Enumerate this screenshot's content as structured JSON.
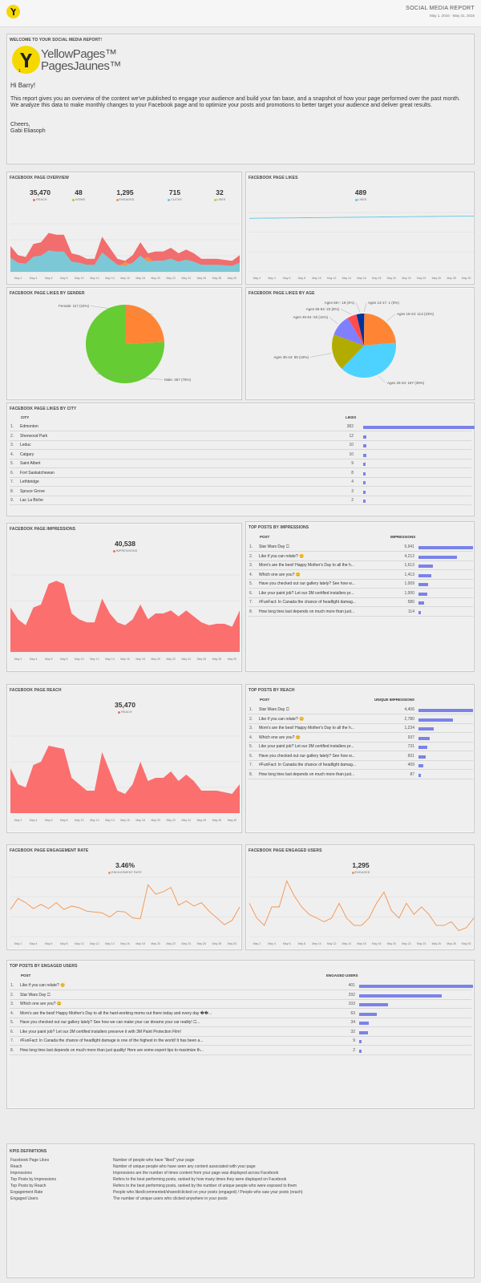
{
  "header": {
    "title": "SOCIAL MEDIA REPORT",
    "date_range": "May 1, 2016 - May 31, 2016"
  },
  "welcome": {
    "title": "WELCOME TO YOUR SOCIAL MEDIA REPORT!",
    "logo_line1": "YellowPages™",
    "logo_line2": "PagesJaunes™",
    "greeting": "Hi Barry!",
    "body": "This report gives you an overview of the content we've published to engage your audience and build your fan base, and a snapshot of how your page performed over the past month. We analyze this data to make monthly changes to your Facebook page and to optimize your posts and promotions to better target your audience and deliver great results.",
    "signoff": "Cheers,",
    "name": "Gabi Eliasoph"
  },
  "date_labels": [
    "May 2",
    "May 4",
    "May 6",
    "May 8",
    "May 10",
    "May 12",
    "May 14",
    "May 16",
    "May 18",
    "May 20",
    "May 22",
    "May 24",
    "May 26",
    "May 28",
    "May 30"
  ],
  "overview": {
    "title": "FACEBOOK PAGE OVERVIEW",
    "stats": [
      {
        "value": "35,470",
        "label": "REACH",
        "color": "#f26d6d"
      },
      {
        "value": "48",
        "label": "VIEWS",
        "color": "#9fcf3a"
      },
      {
        "value": "1,295",
        "label": "ENGAGED",
        "color": "#f5924b"
      },
      {
        "value": "715",
        "label": "CLICKS",
        "color": "#5ec8e6"
      },
      {
        "value": "32",
        "label": "LIKES",
        "color": "#b6d63a"
      }
    ]
  },
  "likes_panel": {
    "title": "FACEBOOK PAGE LIKES",
    "value": "489",
    "label": "LIKES"
  },
  "gender_panel": {
    "title": "FACEBOOK PAGE LIKES BY GENDER"
  },
  "age_panel": {
    "title": "FACEBOOK PAGE LIKES BY AGE"
  },
  "city_panel": {
    "title": "FACEBOOK PAGE LIKES BY CITY",
    "col_city": "CITY",
    "col_likes": "LIKES",
    "rows": [
      {
        "n": "1.",
        "city": "Edmonton",
        "likes": "382",
        "v": 382
      },
      {
        "n": "2.",
        "city": "Sherwood Park",
        "likes": "12",
        "v": 12
      },
      {
        "n": "3.",
        "city": "Leduc",
        "likes": "10",
        "v": 10
      },
      {
        "n": "4.",
        "city": "Calgary",
        "likes": "10",
        "v": 10
      },
      {
        "n": "5.",
        "city": "Saint Albert",
        "likes": "9",
        "v": 9
      },
      {
        "n": "6.",
        "city": "Fort Saskatchewan",
        "likes": "8",
        "v": 8
      },
      {
        "n": "7.",
        "city": "Lethbridge",
        "likes": "4",
        "v": 4
      },
      {
        "n": "8.",
        "city": "Spruce Grove",
        "likes": "3",
        "v": 3
      },
      {
        "n": "9.",
        "city": "Lac La Biche",
        "likes": "2",
        "v": 2
      }
    ]
  },
  "impressions_panel": {
    "title": "FACEBOOK PAGE IMPRESSIONS",
    "value": "40,538",
    "label": "IMPRESSIONS"
  },
  "top_impr": {
    "title": "TOP POSTS BY IMPRESSIONS",
    "col_post": "POST",
    "col_val": "IMPRESSIONS",
    "rows": [
      {
        "n": "1.",
        "post": "Star Wars Day 🞎",
        "val": "5,941",
        "v": 5941
      },
      {
        "n": "2.",
        "post": "Like if you can relate? 😊",
        "val": "4,212",
        "v": 4212
      },
      {
        "n": "3.",
        "post": "Mom's are the best! Happy Mother's Day to all the h...",
        "val": "1,613",
        "v": 1613
      },
      {
        "n": "4.",
        "post": "Which one are you? 😊",
        "val": "1,413",
        "v": 1413
      },
      {
        "n": "5.",
        "post": "Have you checked out our gallery lately? See how w...",
        "val": "1,009",
        "v": 1009
      },
      {
        "n": "6.",
        "post": "Like your paint job? Let our 3M certified installers pr...",
        "val": "1,000",
        "v": 1000
      },
      {
        "n": "7.",
        "post": "#FunFact: In Canada the chance of headlight damag...",
        "val": "580",
        "v": 580
      },
      {
        "n": "8.",
        "post": "How long tires last depends on much more than just...",
        "val": "114",
        "v": 114
      }
    ]
  },
  "reach_panel": {
    "title": "FACEBOOK PAGE REACH",
    "value": "35,470",
    "label": "REACH"
  },
  "top_reach": {
    "title": "TOP POSTS BY REACH",
    "col_post": "POST",
    "col_val": "UNIQUE IMPRESSIONS",
    "rows": [
      {
        "n": "1.",
        "post": "Star Wars Day 🞎",
        "val": "4,406",
        "v": 4406
      },
      {
        "n": "2.",
        "post": "Like if you can relate? 😊",
        "val": "2,780",
        "v": 2780
      },
      {
        "n": "3.",
        "post": "Mom's are the best! Happy Mother's Day to all the h...",
        "val": "1,234",
        "v": 1234
      },
      {
        "n": "4.",
        "post": "Which one are you? 😊",
        "val": "937",
        "v": 937
      },
      {
        "n": "5.",
        "post": "Like your paint job? Let our 3M certified installers pr...",
        "val": "731",
        "v": 731
      },
      {
        "n": "6.",
        "post": "Have you checked out our gallery lately? See how w...",
        "val": "601",
        "v": 601
      },
      {
        "n": "7.",
        "post": "#FunFact: In Canada the chance of headlight damag...",
        "val": "409",
        "v": 409
      },
      {
        "n": "8.",
        "post": "How long tires last depends on much more than just...",
        "val": "87",
        "v": 87
      }
    ]
  },
  "engrate_panel": {
    "title": "FACEBOOK PAGE ENGAGEMENT RATE",
    "value": "3.46%",
    "label": "ENGAGEMENT RATE"
  },
  "engaged_panel": {
    "title": "FACEBOOK PAGE ENGAGED USERS",
    "value": "1,295",
    "label": "ENGAGED"
  },
  "top_engaged": {
    "title": "TOP POSTS BY ENGAGED USERS",
    "col_post": "POST",
    "col_val": "ENGAGED USERS",
    "rows": [
      {
        "n": "1.",
        "post": "Like if you can relate? 😊",
        "val": "401",
        "v": 401
      },
      {
        "n": "2.",
        "post": "Star Wars Day 🞎",
        "val": "292",
        "v": 292
      },
      {
        "n": "3.",
        "post": "Which one are you? 😊",
        "val": "103",
        "v": 103
      },
      {
        "n": "4.",
        "post": "Mom's are the best! Happy Mother's Day to all the hard-working moms out there today and every day ��...",
        "val": "63",
        "v": 63
      },
      {
        "n": "5.",
        "post": "Have you checked out our gallery lately? See how we can make your car dreams your car reality! 🞎...",
        "val": "34",
        "v": 34
      },
      {
        "n": "6.",
        "post": "Like your paint job? Let our 3M certified installers preserve it with 3M Paint Protection Film!",
        "val": "32",
        "v": 32
      },
      {
        "n": "7.",
        "post": "#FunFact: In Canada the chance of headlight damage is one of the highest in the world! It has been a...",
        "val": "9",
        "v": 9
      },
      {
        "n": "8.",
        "post": "How long tires last depends on much more than just quality! Here are some expert tips to maximize th...",
        "val": "2",
        "v": 2
      }
    ]
  },
  "kpis": {
    "title": "KPIS DEFINITIONS",
    "items": [
      {
        "k": "Facebook Page Likes",
        "d": "Number of people who have \"liked\" your page"
      },
      {
        "k": "Reach",
        "d": "Number of unique people who have seen any content associated with your page"
      },
      {
        "k": "Impressions",
        "d": "Impressions are the number of times content from your page was displayed across Facebook"
      },
      {
        "k": "Top Posts by Impressions",
        "d": "Refers to the best performing posts, ranked by how many times they were displayed on Facebook"
      },
      {
        "k": "Top Posts by Reach",
        "d": "Refers to the best performing posts, ranked by the number of unique people who were exposed to them"
      },
      {
        "k": "Engagement Rate",
        "d": "People who liked/commented/shared/clicked on your posts (engaged) / People who saw your posts (reach)"
      },
      {
        "k": "Engaged Users",
        "d": "The number of unique users who clicked anywhere in your posts"
      }
    ]
  },
  "chart_data": [
    {
      "type": "area",
      "title": "FACEBOOK PAGE OVERVIEW",
      "x": [
        "May 1",
        "May 2",
        "May 3",
        "May 4",
        "May 5",
        "May 6",
        "May 7",
        "May 8",
        "May 9",
        "May 10",
        "May 11",
        "May 12",
        "May 13",
        "May 14",
        "May 15",
        "May 16",
        "May 17",
        "May 18",
        "May 19",
        "May 20",
        "May 21",
        "May 22",
        "May 23",
        "May 24",
        "May 25",
        "May 26",
        "May 27",
        "May 28",
        "May 29",
        "May 30",
        "May 31"
      ],
      "series": [
        {
          "name": "REACH",
          "values": [
            1400,
            900,
            800,
            1500,
            1600,
            2100,
            2000,
            2000,
            1000,
            900,
            700,
            700,
            1900,
            1300,
            700,
            600,
            900,
            1600,
            1000,
            1100,
            1100,
            1300,
            1000,
            1200,
            1000,
            700,
            700,
            700,
            650,
            600,
            900
          ]
        },
        {
          "name": "CLICKS",
          "values": [
            40,
            30,
            25,
            40,
            45,
            60,
            55,
            50,
            30,
            25,
            20,
            20,
            40,
            30,
            20,
            15,
            25,
            35,
            25,
            25,
            25,
            30,
            20,
            25,
            20,
            15,
            15,
            15,
            12,
            12,
            20
          ]
        },
        {
          "name": "ENGAGED",
          "values": [
            60,
            40,
            30,
            60,
            70,
            90,
            80,
            60,
            40,
            30,
            25,
            25,
            50,
            40,
            25,
            60,
            40,
            70,
            90,
            50,
            40,
            70,
            40,
            60,
            50,
            30,
            30,
            30,
            20,
            20,
            40
          ]
        }
      ]
    },
    {
      "type": "line",
      "title": "FACEBOOK PAGE LIKES",
      "x": [
        "May 1",
        "May 31"
      ],
      "series": [
        {
          "name": "LIKES",
          "values": [
            458,
            489
          ]
        }
      ]
    },
    {
      "type": "pie",
      "title": "FACEBOOK PAGE LIKES BY GENDER",
      "categories": [
        "Female",
        "Male"
      ],
      "values": [
        117,
        367
      ],
      "labels": [
        "Female: 117 (24%)",
        "Male: 367 (76%)"
      ],
      "colors": [
        "#ff8534",
        "#66cc33"
      ]
    },
    {
      "type": "pie",
      "title": "FACEBOOK PAGE LIKES BY AGE",
      "categories": [
        "Ages 13-17",
        "Ages 18-24",
        "Ages 25-34",
        "Ages 35-44",
        "Ages 45-54",
        "Ages 55-64",
        "Ages 65+"
      ],
      "values": [
        1,
        113,
        187,
        89,
        53,
        23,
        18
      ],
      "labels": [
        "Ages 13-17: 1 (0%)",
        "Ages 18-24: 113 (23%)",
        "Ages 25-34: 187 (39%)",
        "Ages 35-44: 89 (18%)",
        "Ages 45-54: 53 (11%)",
        "Ages 55-64: 23 (5%)",
        "Ages 65+: 18 (4%)"
      ],
      "colors": [
        "#3366cc",
        "#ff8534",
        "#4dd2ff",
        "#b3ac00",
        "#8080ff",
        "#ff4d4d",
        "#003399"
      ]
    },
    {
      "type": "area",
      "title": "FACEBOOK PAGE IMPRESSIONS",
      "series": [
        {
          "name": "IMPRESSIONS",
          "values": [
            1500,
            1100,
            900,
            1500,
            1600,
            2300,
            2400,
            2300,
            1300,
            1100,
            1000,
            1000,
            1800,
            1300,
            1000,
            900,
            1100,
            1600,
            1100,
            1300,
            1300,
            1400,
            1200,
            1400,
            1200,
            1000,
            900,
            950,
            950,
            850,
            1400
          ]
        }
      ]
    },
    {
      "type": "area",
      "title": "FACEBOOK PAGE REACH",
      "series": [
        {
          "name": "REACH",
          "values": [
            1400,
            900,
            800,
            1500,
            1600,
            2100,
            2050,
            2000,
            1100,
            900,
            700,
            700,
            1900,
            1300,
            700,
            600,
            900,
            1600,
            1000,
            1100,
            1100,
            1300,
            1000,
            1200,
            1000,
            700,
            700,
            700,
            650,
            600,
            900
          ]
        }
      ]
    },
    {
      "type": "line",
      "title": "FACEBOOK PAGE ENGAGEMENT RATE",
      "series": [
        {
          "name": "ENGAGEMENT RATE",
          "values": [
            3.2,
            4.5,
            4.0,
            3.3,
            3.8,
            3.3,
            4.0,
            3.2,
            3.6,
            3.4,
            3.0,
            2.9,
            2.8,
            2.3,
            3.0,
            2.9,
            2.2,
            2.1,
            6.1,
            5.0,
            5.3,
            5.8,
            3.7,
            4.2,
            3.6,
            4.0,
            3.0,
            2.2,
            1.4,
            1.9,
            3.5
          ]
        }
      ]
    },
    {
      "type": "line",
      "title": "FACEBOOK PAGE ENGAGED USERS",
      "series": [
        {
          "name": "ENGAGED",
          "values": [
            45,
            25,
            15,
            40,
            40,
            75,
            55,
            40,
            30,
            25,
            20,
            25,
            45,
            25,
            15,
            15,
            25,
            45,
            60,
            35,
            25,
            45,
            30,
            40,
            30,
            15,
            15,
            20,
            8,
            12,
            25
          ]
        }
      ]
    }
  ]
}
